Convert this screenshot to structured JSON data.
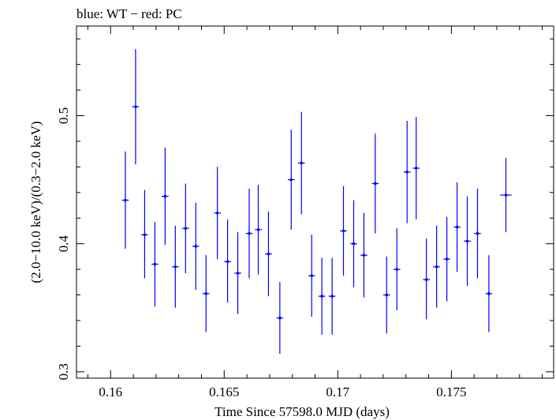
{
  "chart_data": {
    "type": "scatter",
    "title": "blue: WT − red: PC",
    "xlabel": "Time Since 57598.0 MJD (days)",
    "ylabel": "(2.0−10.0 keV)/(0.3−2.0 keV)",
    "xlim": [
      0.1585,
      0.1795
    ],
    "ylim": [
      0.295,
      0.57
    ],
    "xticks": [
      0.16,
      0.165,
      0.17,
      0.175
    ],
    "xtick_labels": [
      "0.16",
      "0.165",
      "0.17",
      "0.175"
    ],
    "yticks": [
      0.3,
      0.4,
      0.5
    ],
    "ytick_labels": [
      "0.3",
      "0.4",
      "0.5"
    ],
    "grid": false,
    "series": [
      {
        "color": "#0000ff",
        "points": [
          {
            "x": 0.16065,
            "y": 0.434,
            "xerr": 0.00015,
            "ylo": 0.396,
            "yhi": 0.472
          },
          {
            "x": 0.1611,
            "y": 0.507,
            "xerr": 0.00015,
            "ylo": 0.462,
            "yhi": 0.552
          },
          {
            "x": 0.1615,
            "y": 0.407,
            "xerr": 0.00015,
            "ylo": 0.373,
            "yhi": 0.442
          },
          {
            "x": 0.16195,
            "y": 0.384,
            "xerr": 0.00015,
            "ylo": 0.351,
            "yhi": 0.417
          },
          {
            "x": 0.1624,
            "y": 0.437,
            "xerr": 0.00015,
            "ylo": 0.399,
            "yhi": 0.475
          },
          {
            "x": 0.16285,
            "y": 0.382,
            "xerr": 0.00015,
            "ylo": 0.35,
            "yhi": 0.414
          },
          {
            "x": 0.1633,
            "y": 0.412,
            "xerr": 0.00015,
            "ylo": 0.377,
            "yhi": 0.447
          },
          {
            "x": 0.16375,
            "y": 0.398,
            "xerr": 0.00015,
            "ylo": 0.364,
            "yhi": 0.432
          },
          {
            "x": 0.1642,
            "y": 0.361,
            "xerr": 0.00015,
            "ylo": 0.331,
            "yhi": 0.391
          },
          {
            "x": 0.1647,
            "y": 0.424,
            "xerr": 0.00015,
            "ylo": 0.388,
            "yhi": 0.46
          },
          {
            "x": 0.16515,
            "y": 0.386,
            "xerr": 0.00015,
            "ylo": 0.354,
            "yhi": 0.419
          },
          {
            "x": 0.1656,
            "y": 0.377,
            "xerr": 0.00015,
            "ylo": 0.345,
            "yhi": 0.409
          },
          {
            "x": 0.1661,
            "y": 0.408,
            "xerr": 0.00015,
            "ylo": 0.373,
            "yhi": 0.443
          },
          {
            "x": 0.1665,
            "y": 0.411,
            "xerr": 0.00015,
            "ylo": 0.376,
            "yhi": 0.446
          },
          {
            "x": 0.16695,
            "y": 0.392,
            "xerr": 0.00015,
            "ylo": 0.359,
            "yhi": 0.425
          },
          {
            "x": 0.16745,
            "y": 0.342,
            "xerr": 0.00015,
            "ylo": 0.314,
            "yhi": 0.37
          },
          {
            "x": 0.16795,
            "y": 0.45,
            "xerr": 0.00015,
            "ylo": 0.411,
            "yhi": 0.489
          },
          {
            "x": 0.1684,
            "y": 0.463,
            "xerr": 0.00015,
            "ylo": 0.423,
            "yhi": 0.503
          },
          {
            "x": 0.16885,
            "y": 0.375,
            "xerr": 0.00015,
            "ylo": 0.343,
            "yhi": 0.407
          },
          {
            "x": 0.1693,
            "y": 0.359,
            "xerr": 0.00015,
            "ylo": 0.329,
            "yhi": 0.389
          },
          {
            "x": 0.16975,
            "y": 0.359,
            "xerr": 0.00015,
            "ylo": 0.329,
            "yhi": 0.389
          },
          {
            "x": 0.17025,
            "y": 0.41,
            "xerr": 0.00015,
            "ylo": 0.375,
            "yhi": 0.445
          },
          {
            "x": 0.1707,
            "y": 0.4,
            "xerr": 0.00015,
            "ylo": 0.366,
            "yhi": 0.434
          },
          {
            "x": 0.17115,
            "y": 0.391,
            "xerr": 0.00015,
            "ylo": 0.358,
            "yhi": 0.424
          },
          {
            "x": 0.17165,
            "y": 0.447,
            "xerr": 0.00015,
            "ylo": 0.408,
            "yhi": 0.486
          },
          {
            "x": 0.17215,
            "y": 0.36,
            "xerr": 0.00015,
            "ylo": 0.33,
            "yhi": 0.39
          },
          {
            "x": 0.1726,
            "y": 0.38,
            "xerr": 0.00015,
            "ylo": 0.348,
            "yhi": 0.412
          },
          {
            "x": 0.17305,
            "y": 0.456,
            "xerr": 0.00015,
            "ylo": 0.416,
            "yhi": 0.496
          },
          {
            "x": 0.17345,
            "y": 0.459,
            "xerr": 0.00015,
            "ylo": 0.419,
            "yhi": 0.499
          },
          {
            "x": 0.1739,
            "y": 0.372,
            "xerr": 0.00015,
            "ylo": 0.341,
            "yhi": 0.404
          },
          {
            "x": 0.17435,
            "y": 0.382,
            "xerr": 0.00015,
            "ylo": 0.35,
            "yhi": 0.414
          },
          {
            "x": 0.1748,
            "y": 0.388,
            "xerr": 0.00015,
            "ylo": 0.355,
            "yhi": 0.421
          },
          {
            "x": 0.17525,
            "y": 0.413,
            "xerr": 0.00015,
            "ylo": 0.378,
            "yhi": 0.448
          },
          {
            "x": 0.1757,
            "y": 0.402,
            "xerr": 0.00015,
            "ylo": 0.367,
            "yhi": 0.437
          },
          {
            "x": 0.17615,
            "y": 0.408,
            "xerr": 0.00015,
            "ylo": 0.373,
            "yhi": 0.443
          },
          {
            "x": 0.17665,
            "y": 0.361,
            "xerr": 0.00015,
            "ylo": 0.331,
            "yhi": 0.391
          },
          {
            "x": 0.1774,
            "y": 0.438,
            "xerr": 0.00025,
            "ylo": 0.409,
            "yhi": 0.467
          }
        ]
      }
    ]
  }
}
